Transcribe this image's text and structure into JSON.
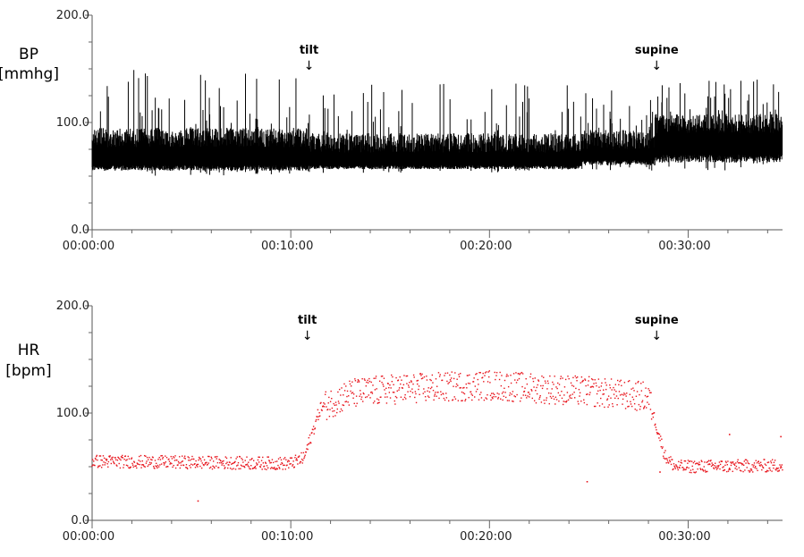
{
  "chart_data": [
    {
      "type": "area",
      "name": "bp-panel",
      "ylabel_lines": [
        "BP",
        "[mmhg]"
      ],
      "y_ticks": [
        0,
        100,
        200
      ],
      "y_tick_labels": [
        "0.0",
        "100.0",
        "200.0"
      ],
      "ylim": [
        0,
        200
      ],
      "x_ticks": [
        "00:00:00",
        "00:10:00",
        "00:20:00",
        "00:30:00"
      ],
      "x_tick_seconds": [
        0,
        600,
        1200,
        1800
      ],
      "xlim_seconds": [
        0,
        2085
      ],
      "series_color": "#000000",
      "annotations": [
        {
          "label": "tilt",
          "arrow": "↓",
          "t": 655
        },
        {
          "label": "supine",
          "arrow": "↓",
          "t": 1705
        }
      ],
      "segments": [
        {
          "t_start": 0,
          "t_end": 650,
          "low": 50,
          "high": 150,
          "base_low": 60,
          "base_high": 95
        },
        {
          "t_start": 650,
          "t_end": 1480,
          "low": 53,
          "high": 138,
          "base_low": 60,
          "base_high": 90
        },
        {
          "t_start": 1480,
          "t_end": 1700,
          "low": 55,
          "high": 133,
          "base_low": 65,
          "base_high": 93
        },
        {
          "t_start": 1700,
          "t_end": 2085,
          "low": 55,
          "high": 140,
          "base_low": 70,
          "base_high": 108
        }
      ]
    },
    {
      "type": "scatter",
      "name": "hr-panel",
      "ylabel_lines": [
        "HR",
        "[bpm]"
      ],
      "y_ticks": [
        0,
        100,
        200
      ],
      "y_tick_labels": [
        "0.0",
        "100.0",
        "200.0"
      ],
      "ylim": [
        0,
        200
      ],
      "x_ticks": [
        "00:00:00",
        "00:10:00",
        "00:20:00",
        "00:30:00"
      ],
      "x_tick_seconds": [
        0,
        600,
        1200,
        1800
      ],
      "xlim_seconds": [
        0,
        2085
      ],
      "series_color": "#e8141c",
      "annotations": [
        {
          "label": "tilt",
          "arrow": "↓",
          "t": 650
        },
        {
          "label": "supine",
          "arrow": "↓",
          "t": 1705
        }
      ],
      "trend": [
        {
          "t": 0,
          "hr": 55
        },
        {
          "t": 600,
          "hr": 53
        },
        {
          "t": 640,
          "hr": 58
        },
        {
          "t": 690,
          "hr": 105
        },
        {
          "t": 780,
          "hr": 118
        },
        {
          "t": 900,
          "hr": 122
        },
        {
          "t": 1200,
          "hr": 126
        },
        {
          "t": 1500,
          "hr": 120
        },
        {
          "t": 1680,
          "hr": 115
        },
        {
          "t": 1730,
          "hr": 60
        },
        {
          "t": 1760,
          "hr": 50
        },
        {
          "t": 2085,
          "hr": 51
        }
      ],
      "outliers": [
        {
          "t": 320,
          "hr": 18
        },
        {
          "t": 1495,
          "hr": 36
        },
        {
          "t": 1715,
          "hr": 45
        },
        {
          "t": 1925,
          "hr": 80
        },
        {
          "t": 2080,
          "hr": 78
        }
      ]
    }
  ]
}
